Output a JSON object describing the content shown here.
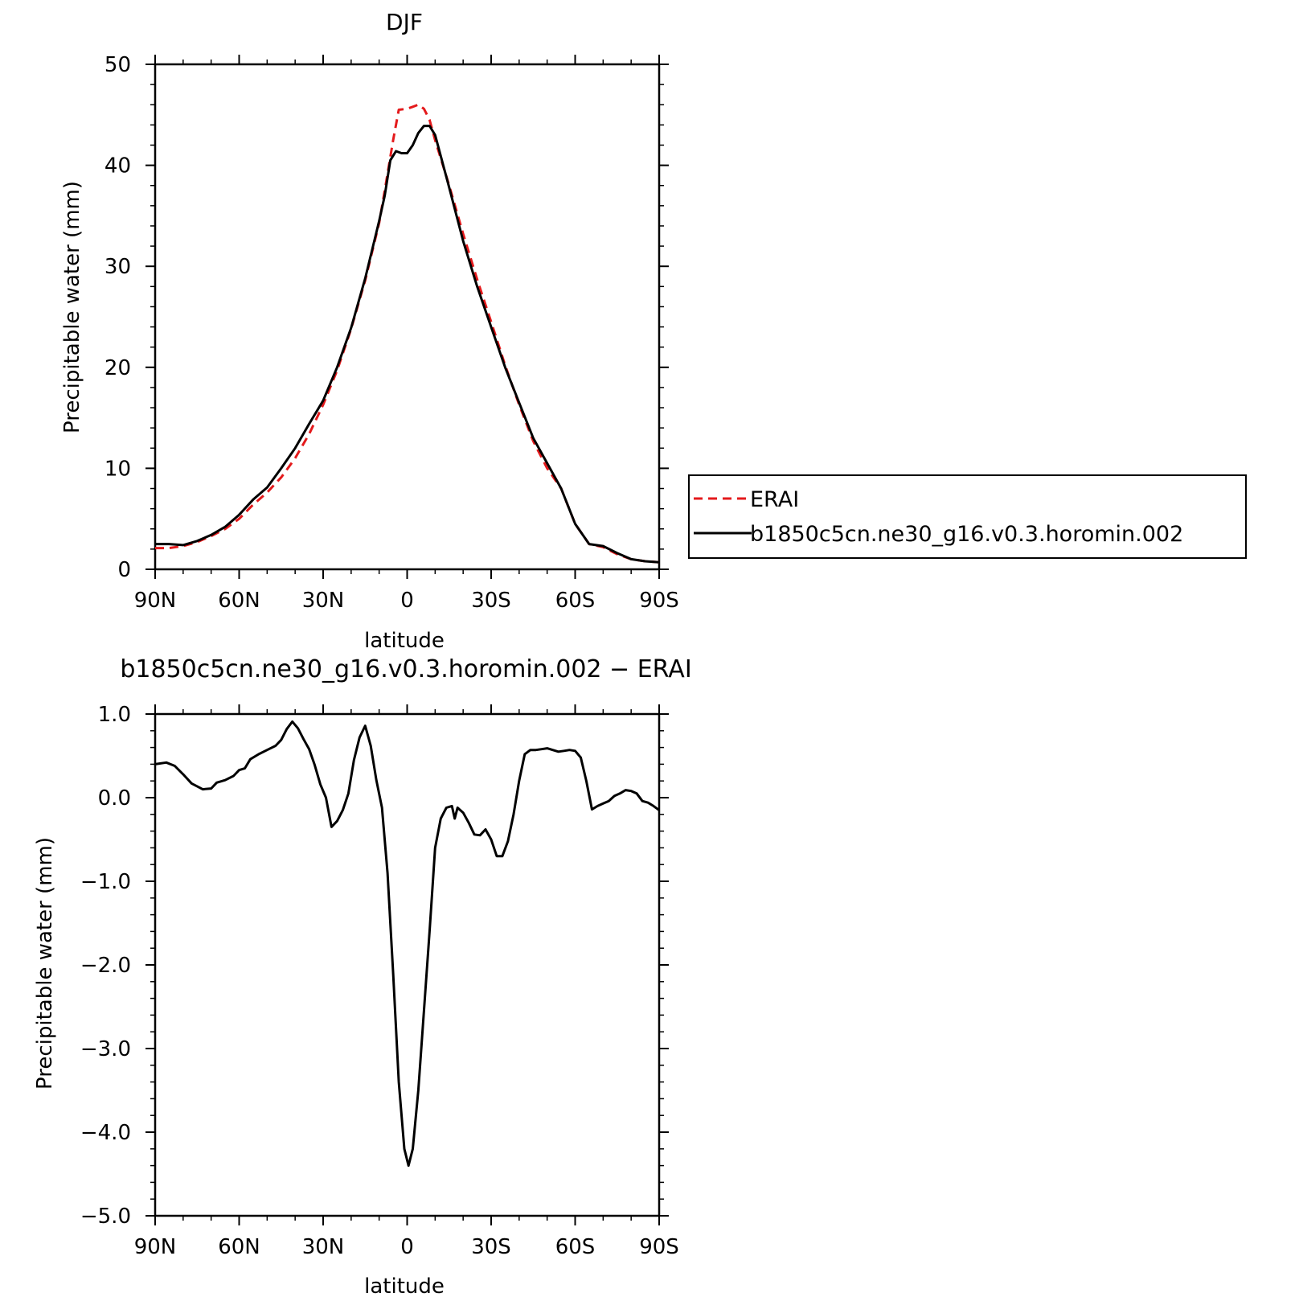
{
  "chart_data": [
    {
      "type": "line",
      "title": "DJF",
      "xlabel": "latitude",
      "ylabel": "Precipitable water (mm)",
      "xlim": [
        90,
        -90
      ],
      "ylim": [
        0,
        50
      ],
      "x_ticks": [
        90,
        60,
        30,
        0,
        -30,
        -60,
        -90
      ],
      "x_tick_labels": [
        "90N",
        "60N",
        "30N",
        "0",
        "30S",
        "60S",
        "90S"
      ],
      "y_ticks": [
        0,
        10,
        20,
        30,
        40,
        50
      ],
      "y_tick_labels": [
        "0",
        "10",
        "20",
        "30",
        "40",
        "50"
      ],
      "legend": {
        "placement": "right",
        "entries": [
          {
            "name": "ERAI",
            "color": "#e41a1c",
            "dash": "dashed"
          },
          {
            "name": "b1850c5cn.ne30_g16.v0.3.horomin.002",
            "color": "#000000",
            "dash": "solid"
          }
        ]
      },
      "series": [
        {
          "name": "ERAI",
          "color": "#e41a1c",
          "dash": "dashed",
          "points": [
            [
              90,
              2.1
            ],
            [
              85,
              2.1
            ],
            [
              80,
              2.3
            ],
            [
              75,
              2.7
            ],
            [
              70,
              3.3
            ],
            [
              65,
              4.0
            ],
            [
              60,
              5.0
            ],
            [
              55,
              6.4
            ],
            [
              50,
              7.6
            ],
            [
              45,
              9.1
            ],
            [
              40,
              11.0
            ],
            [
              35,
              13.4
            ],
            [
              30,
              16.3
            ],
            [
              25,
              19.7
            ],
            [
              20,
              23.8
            ],
            [
              15,
              28.6
            ],
            [
              10,
              34.3
            ],
            [
              8,
              37.5
            ],
            [
              5,
              42.5
            ],
            [
              3,
              45.5
            ],
            [
              0,
              45.6
            ],
            [
              -2,
              45.8
            ],
            [
              -4,
              46.0
            ],
            [
              -6,
              45.6
            ],
            [
              -8,
              44.5
            ],
            [
              -10,
              42.5
            ],
            [
              -15,
              38.0
            ],
            [
              -20,
              33.2
            ],
            [
              -25,
              28.7
            ],
            [
              -30,
              24.5
            ],
            [
              -35,
              20.2
            ],
            [
              -40,
              16.3
            ],
            [
              -45,
              12.7
            ],
            [
              -50,
              10.0
            ],
            [
              -55,
              8.0
            ],
            [
              -60,
              4.5
            ],
            [
              -65,
              2.5
            ],
            [
              -70,
              2.2
            ],
            [
              -75,
              1.5
            ],
            [
              -80,
              1.0
            ],
            [
              -85,
              0.8
            ],
            [
              -90,
              0.7
            ]
          ]
        },
        {
          "name": "b1850c5cn.ne30_g16.v0.3.horomin.002",
          "color": "#000000",
          "dash": "solid",
          "points": [
            [
              90,
              2.5
            ],
            [
              85,
              2.5
            ],
            [
              80,
              2.4
            ],
            [
              75,
              2.8
            ],
            [
              70,
              3.4
            ],
            [
              65,
              4.2
            ],
            [
              60,
              5.4
            ],
            [
              55,
              6.9
            ],
            [
              50,
              8.1
            ],
            [
              45,
              10.0
            ],
            [
              40,
              12.0
            ],
            [
              35,
              14.4
            ],
            [
              30,
              16.7
            ],
            [
              25,
              20.0
            ],
            [
              20,
              23.9
            ],
            [
              15,
              28.8
            ],
            [
              10,
              34.5
            ],
            [
              8,
              37.0
            ],
            [
              6,
              40.5
            ],
            [
              4,
              41.4
            ],
            [
              2,
              41.2
            ],
            [
              0,
              41.2
            ],
            [
              -2,
              42.0
            ],
            [
              -4,
              43.2
            ],
            [
              -6,
              43.9
            ],
            [
              -8,
              43.9
            ],
            [
              -10,
              43.0
            ],
            [
              -15,
              37.8
            ],
            [
              -20,
              32.5
            ],
            [
              -25,
              28.0
            ],
            [
              -30,
              24.0
            ],
            [
              -35,
              20.0
            ],
            [
              -40,
              16.5
            ],
            [
              -45,
              13.0
            ],
            [
              -50,
              10.5
            ],
            [
              -55,
              8.0
            ],
            [
              -60,
              4.5
            ],
            [
              -65,
              2.5
            ],
            [
              -70,
              2.3
            ],
            [
              -75,
              1.6
            ],
            [
              -80,
              1.0
            ],
            [
              -85,
              0.8
            ],
            [
              -90,
              0.7
            ]
          ]
        }
      ]
    },
    {
      "type": "line",
      "title": "b1850c5cn.ne30_g16.v0.3.horomin.002 − ERAI",
      "xlabel": "latitude",
      "ylabel": "Precipitable water (mm)",
      "xlim": [
        90,
        -90
      ],
      "ylim": [
        -5.0,
        1.0
      ],
      "x_ticks": [
        90,
        60,
        30,
        0,
        -30,
        -60,
        -90
      ],
      "x_tick_labels": [
        "90N",
        "60N",
        "30N",
        "0",
        "30S",
        "60S",
        "90S"
      ],
      "y_ticks": [
        1.0,
        0.0,
        -1.0,
        -2.0,
        -3.0,
        -4.0,
        -5.0
      ],
      "y_tick_labels": [
        "1.0",
        "0.0",
        "−1.0",
        "−2.0",
        "−3.0",
        "−4.0",
        "−5.0"
      ],
      "series": [
        {
          "color": "#000000",
          "dash": "solid",
          "points": [
            [
              90,
              0.4
            ],
            [
              86,
              0.42
            ],
            [
              83,
              0.38
            ],
            [
              80,
              0.28
            ],
            [
              77,
              0.17
            ],
            [
              73,
              0.1
            ],
            [
              70,
              0.11
            ],
            [
              68,
              0.18
            ],
            [
              65,
              0.21
            ],
            [
              62,
              0.26
            ],
            [
              60,
              0.33
            ],
            [
              58,
              0.35
            ],
            [
              56,
              0.46
            ],
            [
              53,
              0.52
            ],
            [
              50,
              0.57
            ],
            [
              47,
              0.62
            ],
            [
              45,
              0.69
            ],
            [
              43,
              0.82
            ],
            [
              41,
              0.91
            ],
            [
              39,
              0.83
            ],
            [
              37,
              0.7
            ],
            [
              35,
              0.58
            ],
            [
              33,
              0.39
            ],
            [
              31,
              0.16
            ],
            [
              29,
              0.0
            ],
            [
              27,
              -0.35
            ],
            [
              25,
              -0.28
            ],
            [
              23,
              -0.15
            ],
            [
              21,
              0.05
            ],
            [
              19,
              0.45
            ],
            [
              17,
              0.72
            ],
            [
              15,
              0.86
            ],
            [
              13,
              0.62
            ],
            [
              11,
              0.21
            ],
            [
              9,
              -0.12
            ],
            [
              7,
              -0.9
            ],
            [
              5,
              -2.1
            ],
            [
              3,
              -3.4
            ],
            [
              1,
              -4.2
            ],
            [
              -0.5,
              -4.4
            ],
            [
              -2,
              -4.2
            ],
            [
              -4,
              -3.5
            ],
            [
              -6,
              -2.55
            ],
            [
              -8,
              -1.6
            ],
            [
              -10,
              -0.6
            ],
            [
              -12,
              -0.25
            ],
            [
              -14,
              -0.12
            ],
            [
              -16,
              -0.1
            ],
            [
              -17,
              -0.25
            ],
            [
              -18,
              -0.12
            ],
            [
              -20,
              -0.18
            ],
            [
              -22,
              -0.3
            ],
            [
              -24,
              -0.44
            ],
            [
              -26,
              -0.45
            ],
            [
              -28,
              -0.38
            ],
            [
              -30,
              -0.5
            ],
            [
              -32,
              -0.7
            ],
            [
              -34,
              -0.7
            ],
            [
              -36,
              -0.52
            ],
            [
              -38,
              -0.2
            ],
            [
              -40,
              0.2
            ],
            [
              -42,
              0.52
            ],
            [
              -44,
              0.57
            ],
            [
              -46,
              0.57
            ],
            [
              -48,
              0.58
            ],
            [
              -50,
              0.59
            ],
            [
              -52,
              0.57
            ],
            [
              -54,
              0.55
            ],
            [
              -56,
              0.56
            ],
            [
              -58,
              0.57
            ],
            [
              -60,
              0.56
            ],
            [
              -62,
              0.48
            ],
            [
              -64,
              0.2
            ],
            [
              -66,
              -0.14
            ],
            [
              -68,
              -0.1
            ],
            [
              -70,
              -0.07
            ],
            [
              -72,
              -0.04
            ],
            [
              -74,
              0.02
            ],
            [
              -76,
              0.05
            ],
            [
              -78,
              0.09
            ],
            [
              -80,
              0.08
            ],
            [
              -82,
              0.05
            ],
            [
              -84,
              -0.04
            ],
            [
              -86,
              -0.06
            ],
            [
              -88,
              -0.1
            ],
            [
              -90,
              -0.15
            ]
          ]
        }
      ]
    }
  ]
}
